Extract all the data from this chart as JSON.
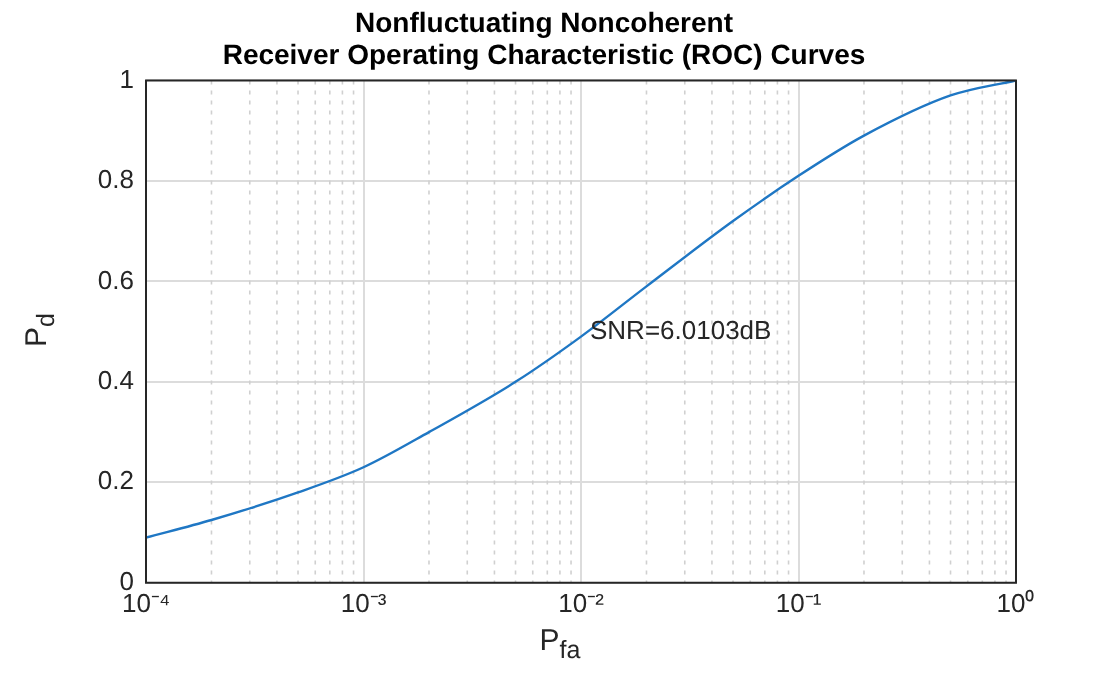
{
  "chart_data": {
    "type": "line",
    "title": "Nonfluctuating Noncoherent\nReceiver Operating Characteristic (ROC) Curves",
    "xlabel": "P$_{fa}$",
    "ylabel": "P$_{d}$",
    "log": "x",
    "x": [
      0.0001,
      0.0002,
      0.0005,
      0.001,
      0.002,
      0.005,
      0.01,
      0.02,
      0.05,
      0.1,
      0.2,
      0.5,
      1
    ],
    "series": [
      {
        "color": "#1f77c4",
        "values": [
          0.09,
          0.125,
          0.18,
          0.23,
          0.3,
          0.4,
          0.49,
          0.59,
          0.72,
          0.81,
          0.89,
          0.97,
          1
        ]
      }
    ],
    "xlim": [
      0.0001,
      1
    ],
    "xticks": [
      {
        "value": 0.0001,
        "label": "10⁻⁴"
      },
      {
        "value": 0.001,
        "label": "10⁻³"
      },
      {
        "value": 0.01,
        "label": "10⁻²"
      },
      {
        "value": 0.1,
        "label": "10⁻¹"
      },
      {
        "value": 1,
        "label": "10⁰"
      }
    ],
    "ylim": [
      0,
      1
    ],
    "yticks": [
      0,
      0.2,
      0.4,
      0.6,
      0.8,
      1
    ],
    "grid": true,
    "legend": false,
    "marker": "none",
    "line_style": "solid",
    "annotations": [
      {
        "text": "SNR=6.0103dB",
        "x": 0.011,
        "y": 0.5
      }
    ]
  }
}
